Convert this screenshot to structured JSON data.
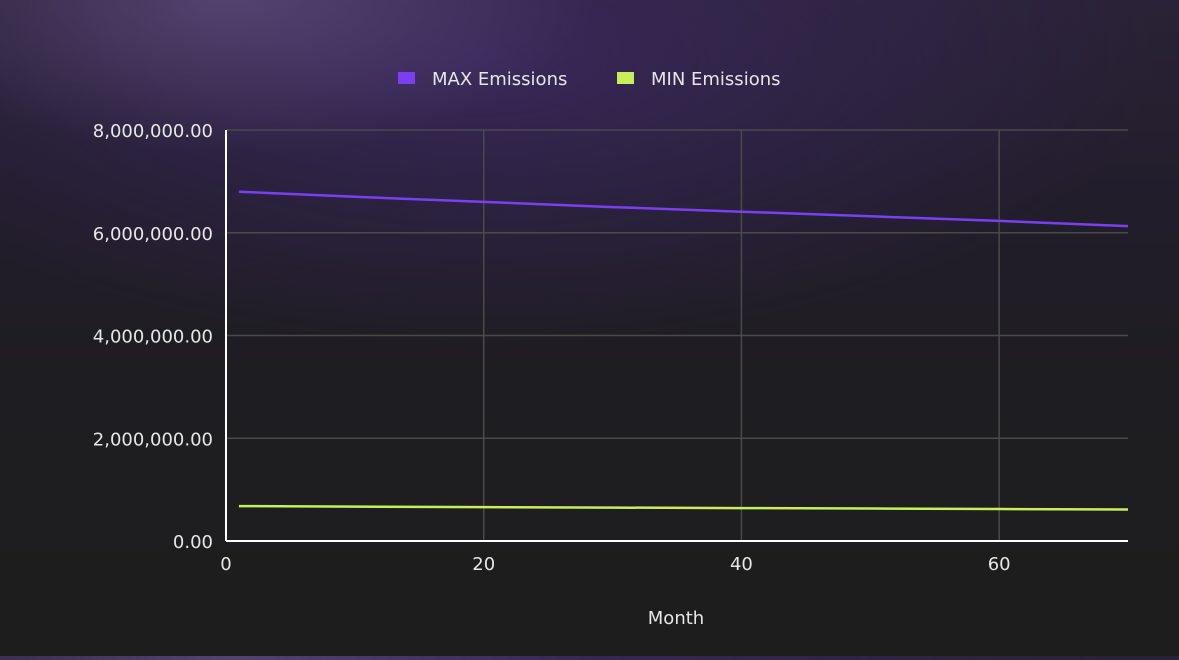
{
  "colors": {
    "max_series": "#7b3ff2",
    "min_series": "#c8ef5a",
    "grid": "#4a4a4a",
    "axis": "#ffffff",
    "text": "#e6e6e6"
  },
  "chart_data": {
    "type": "line",
    "title": "",
    "xlabel": "Month",
    "ylabel": "",
    "xlim": [
      0,
      70
    ],
    "ylim": [
      0,
      8000000
    ],
    "x_ticks": [
      0,
      20,
      40,
      60
    ],
    "x_tick_labels": [
      "0",
      "20",
      "40",
      "60"
    ],
    "y_ticks": [
      0,
      2000000,
      4000000,
      6000000,
      8000000
    ],
    "y_tick_labels": [
      "0.00",
      "2,000,000.00",
      "4,000,000.00",
      "6,000,000.00",
      "8,000,000.00"
    ],
    "grid": true,
    "legend_position": "top-center",
    "series": [
      {
        "name": "MAX Emissions",
        "color": "#7b3ff2",
        "x": [
          1,
          10,
          20,
          30,
          40,
          50,
          60,
          70
        ],
        "y": [
          6800000,
          6700000,
          6600000,
          6500000,
          6410000,
          6320000,
          6230000,
          6130000
        ]
      },
      {
        "name": "MIN Emissions",
        "color": "#c8ef5a",
        "x": [
          1,
          10,
          20,
          30,
          40,
          50,
          60,
          70
        ],
        "y": [
          680000,
          670000,
          660000,
          650000,
          641000,
          632000,
          623000,
          613000
        ]
      }
    ]
  }
}
